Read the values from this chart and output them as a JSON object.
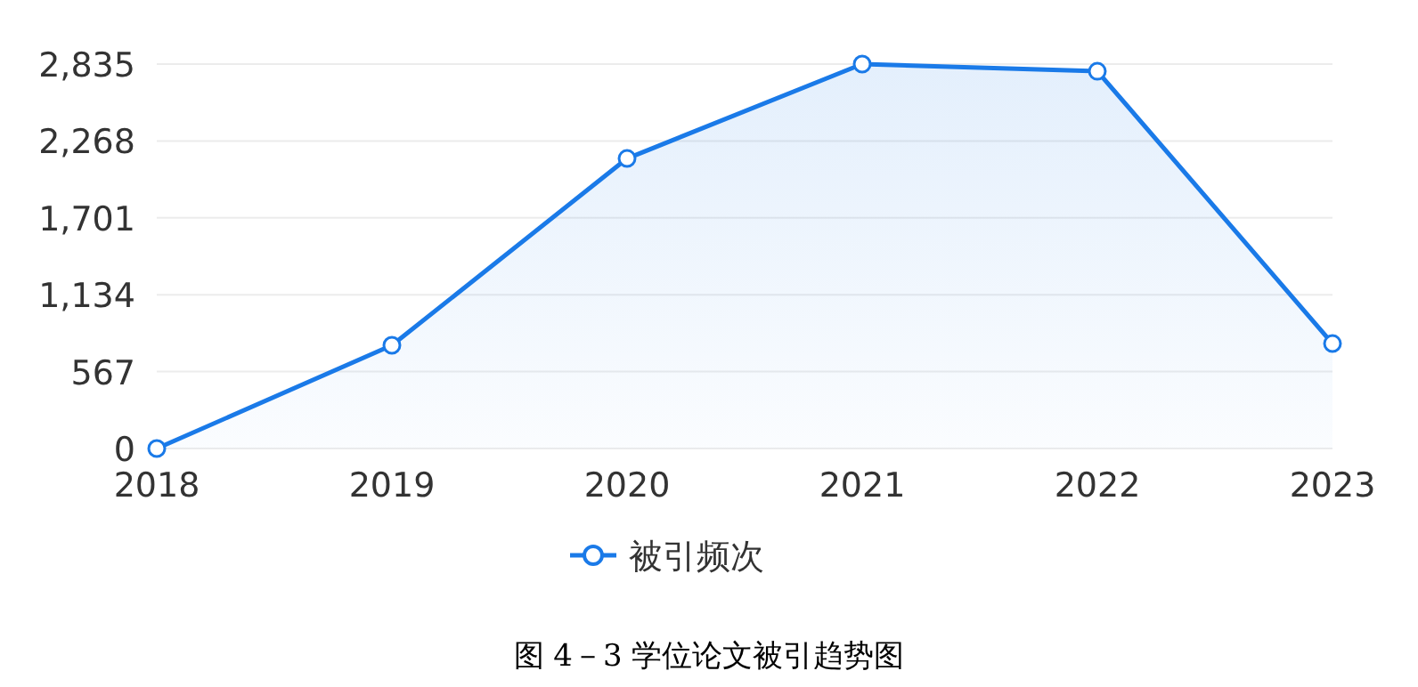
{
  "chart_data": {
    "type": "area",
    "categories": [
      "2018",
      "2019",
      "2020",
      "2021",
      "2022",
      "2023"
    ],
    "series": [
      {
        "name": "被引频次",
        "color": "#1a7ae8",
        "values": [
          0,
          761,
          2139,
          2835,
          2782,
          774
        ]
      }
    ],
    "ylim": [
      0,
      2835
    ],
    "yticks": [
      {
        "value": 0,
        "label": "0"
      },
      {
        "value": 567,
        "label": "567"
      },
      {
        "value": 1134,
        "label": "1,134"
      },
      {
        "value": 1701,
        "label": "1,701"
      },
      {
        "value": 2268,
        "label": "2,268"
      },
      {
        "value": 2835,
        "label": "2,835"
      }
    ],
    "grid": "y",
    "legend": "bottom",
    "marker": "circle",
    "annotations": [
      "图 4－3 学位论文被引趋势图"
    ]
  }
}
